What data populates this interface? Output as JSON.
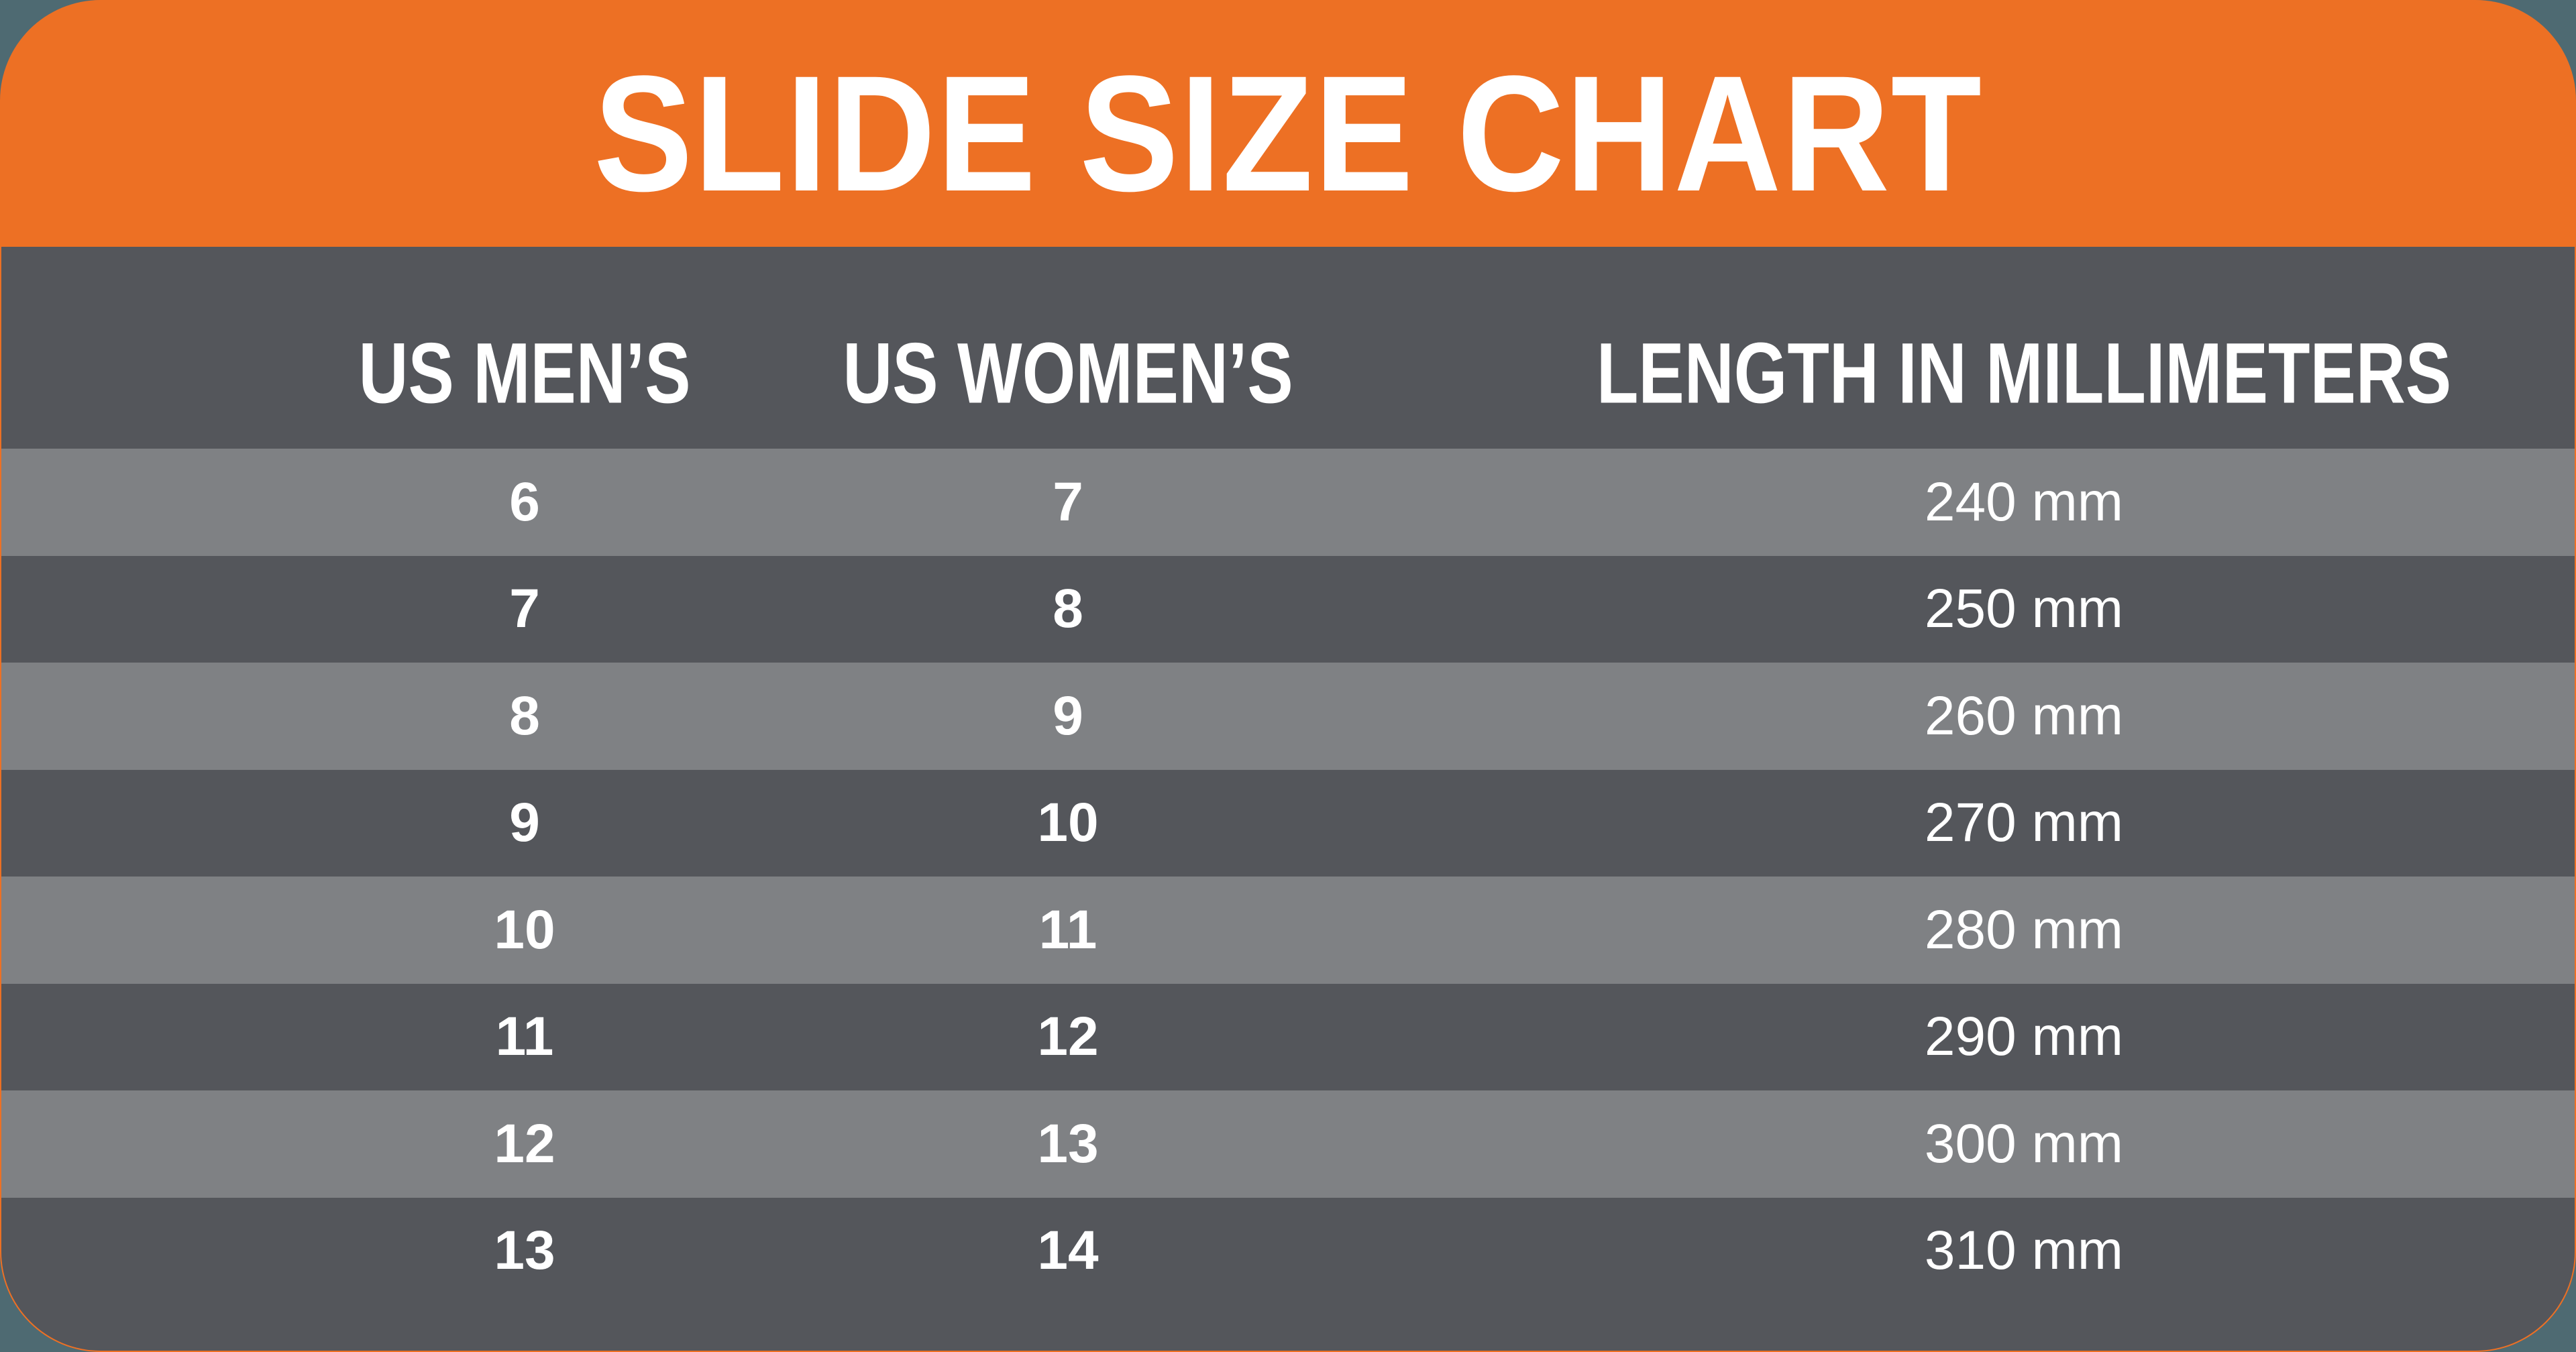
{
  "title": "SLIDE SIZE CHART",
  "colors": {
    "accent_orange": "#ED7024",
    "canvas_slate": "#4E6A72",
    "row_dark": "#54565B",
    "row_light": "#7F8184",
    "text_white": "#FFFFFF"
  },
  "table": {
    "columns": [
      "US MEN’S",
      "US WOMEN’S",
      "LENGTH IN MILLIMETERS"
    ],
    "rows": [
      [
        "6",
        "7",
        "240 mm"
      ],
      [
        "7",
        "8",
        "250 mm"
      ],
      [
        "8",
        "9",
        "260 mm"
      ],
      [
        "9",
        "10",
        "270 mm"
      ],
      [
        "10",
        "11",
        "280 mm"
      ],
      [
        "11",
        "12",
        "290 mm"
      ],
      [
        "12",
        "13",
        "300 mm"
      ],
      [
        "13",
        "14",
        "310 mm"
      ]
    ]
  },
  "chart_data": {
    "type": "table",
    "title": "SLIDE SIZE CHART",
    "columns": [
      "US MEN’S",
      "US WOMEN’S",
      "LENGTH IN MILLIMETERS"
    ],
    "rows": [
      [
        6,
        7,
        "240 mm"
      ],
      [
        7,
        8,
        "250 mm"
      ],
      [
        8,
        9,
        "260 mm"
      ],
      [
        9,
        10,
        "270 mm"
      ],
      [
        10,
        11,
        "280 mm"
      ],
      [
        11,
        12,
        "290 mm"
      ],
      [
        12,
        13,
        "300 mm"
      ],
      [
        13,
        14,
        "310 mm"
      ]
    ],
    "layout": {
      "header_background": "#ED7024",
      "body_background": "#54565B",
      "zebra_row_background": "#7F8184",
      "row_order_shading": [
        "light",
        "dark",
        "light",
        "dark",
        "light",
        "dark",
        "light",
        "dark"
      ]
    }
  }
}
